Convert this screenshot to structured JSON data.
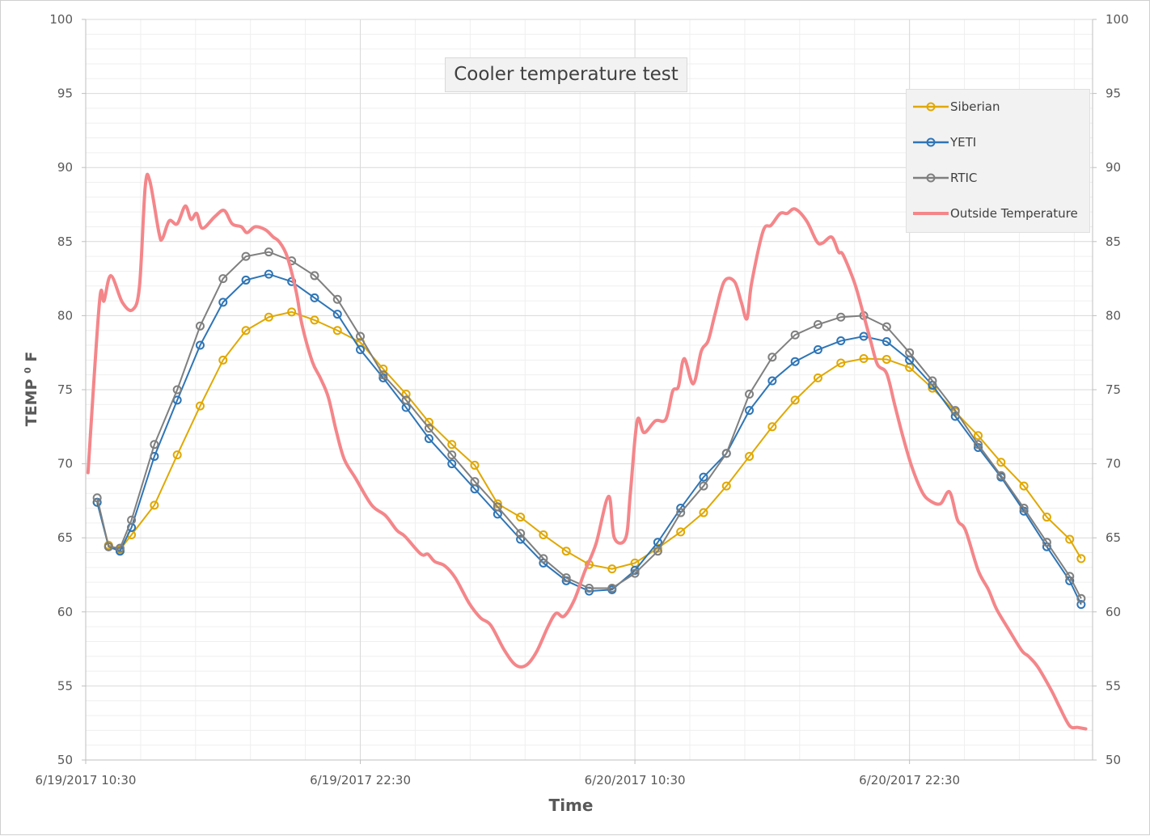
{
  "chart_data": {
    "type": "line",
    "title": "Cooler temperature test",
    "xlabel": "Time",
    "ylabel": {
      "text": "TEMP",
      "superscript": "0",
      "unit": "F"
    },
    "ylim": [
      50,
      100
    ],
    "y_major": 5,
    "y_minor": 1,
    "xlim": [
      "2017-06-19 10:30",
      "2017-06-21 06:30"
    ],
    "x_major_hours": 12,
    "x_minor_hours": 2.4,
    "x_tick_labels": [
      "6/19/2017 10:30",
      "6/19/2017 22:30",
      "6/20/2017 10:30",
      "6/20/2017 22:30"
    ],
    "y_tick_labels": [
      "50",
      "55",
      "60",
      "65",
      "70",
      "75",
      "80",
      "85",
      "90",
      "95",
      "100"
    ],
    "secondary_y_tick_labels": [
      "50",
      "55",
      "60",
      "65",
      "70",
      "75",
      "80",
      "85",
      "90",
      "95",
      "100"
    ],
    "grid": true,
    "legend_position": "top-right",
    "cooler_x": [
      "2017-06-19 11:00",
      "2017-06-19 11:30",
      "2017-06-19 12:00",
      "2017-06-19 12:30",
      "2017-06-19 13:30",
      "2017-06-19 14:30",
      "2017-06-19 15:30",
      "2017-06-19 16:30",
      "2017-06-19 17:30",
      "2017-06-19 18:30",
      "2017-06-19 19:30",
      "2017-06-19 20:30",
      "2017-06-19 21:30",
      "2017-06-19 22:30",
      "2017-06-19 23:30",
      "2017-06-20 00:30",
      "2017-06-20 01:30",
      "2017-06-20 02:30",
      "2017-06-20 03:30",
      "2017-06-20 04:30",
      "2017-06-20 05:30",
      "2017-06-20 06:30",
      "2017-06-20 07:30",
      "2017-06-20 08:30",
      "2017-06-20 09:30",
      "2017-06-20 10:30",
      "2017-06-20 11:30",
      "2017-06-20 12:30",
      "2017-06-20 13:30",
      "2017-06-20 14:30",
      "2017-06-20 15:30",
      "2017-06-20 16:30",
      "2017-06-20 17:30",
      "2017-06-20 18:30",
      "2017-06-20 19:30",
      "2017-06-20 20:30",
      "2017-06-20 21:30",
      "2017-06-20 22:30",
      "2017-06-20 23:30",
      "2017-06-21 00:30",
      "2017-06-21 01:30",
      "2017-06-21 02:30",
      "2017-06-21 03:30",
      "2017-06-21 04:30",
      "2017-06-21 05:30",
      "2017-06-21 06:00"
    ],
    "series": [
      {
        "name": "Siberian",
        "color": "#E0A800",
        "marker": "circle",
        "values": [
          67.4,
          64.5,
          64.2,
          65.2,
          67.2,
          70.6,
          73.9,
          77.0,
          79.0,
          79.9,
          80.25,
          79.7,
          79.0,
          78.2,
          76.4,
          74.7,
          72.8,
          71.3,
          69.9,
          67.3,
          66.4,
          65.2,
          64.1,
          63.2,
          62.9,
          63.3,
          64.3,
          65.4,
          66.7,
          68.5,
          70.5,
          72.5,
          74.3,
          75.8,
          76.8,
          77.1,
          77.05,
          76.5,
          75.1,
          73.5,
          71.9,
          70.1,
          68.5,
          66.4,
          64.9,
          63.6
        ]
      },
      {
        "name": "YETI",
        "color": "#2E75B6",
        "marker": "circle",
        "values": [
          67.4,
          64.4,
          64.1,
          65.7,
          70.5,
          74.3,
          78.0,
          80.9,
          82.4,
          82.8,
          82.3,
          81.2,
          80.1,
          77.7,
          75.8,
          73.8,
          71.7,
          70.0,
          68.3,
          66.6,
          64.9,
          63.3,
          62.1,
          61.4,
          61.5,
          62.8,
          64.7,
          67.0,
          69.1,
          70.7,
          73.6,
          75.6,
          76.9,
          77.7,
          78.3,
          78.6,
          78.25,
          77.0,
          75.3,
          73.2,
          71.1,
          69.1,
          66.8,
          64.4,
          62.1,
          60.5
        ]
      },
      {
        "name": "RTIC",
        "color": "#7F7F7F",
        "marker": "circle",
        "values": [
          67.7,
          64.4,
          64.3,
          66.2,
          71.3,
          75.0,
          79.3,
          82.5,
          84.0,
          84.3,
          83.7,
          82.7,
          81.1,
          78.6,
          76.0,
          74.3,
          72.4,
          70.6,
          68.8,
          67.1,
          65.3,
          63.6,
          62.3,
          61.6,
          61.6,
          62.6,
          64.1,
          66.7,
          68.5,
          70.7,
          74.7,
          77.2,
          78.7,
          79.4,
          79.9,
          80.0,
          79.25,
          77.5,
          75.6,
          73.6,
          71.3,
          69.2,
          67.0,
          64.7,
          62.4,
          60.9
        ]
      },
      {
        "name": "Outside Temperature",
        "color": "#F4868A",
        "marker": "none",
        "x": [
          "2017-06-19 10:36",
          "2017-06-19 11:06",
          "2017-06-19 11:18",
          "2017-06-19 11:36",
          "2017-06-19 12:06",
          "2017-06-19 12:33",
          "2017-06-19 12:51",
          "2017-06-19 13:06",
          "2017-06-19 13:18",
          "2017-06-19 13:42",
          "2017-06-19 13:51",
          "2017-06-19 14:09",
          "2017-06-19 14:30",
          "2017-06-19 14:51",
          "2017-06-19 15:06",
          "2017-06-19 15:21",
          "2017-06-19 15:36",
          "2017-06-19 16:09",
          "2017-06-19 16:33",
          "2017-06-19 16:54",
          "2017-06-19 17:18",
          "2017-06-19 17:33",
          "2017-06-19 17:54",
          "2017-06-19 18:21",
          "2017-06-19 18:42",
          "2017-06-19 18:57",
          "2017-06-19 19:18",
          "2017-06-19 19:42",
          "2017-06-19 19:57",
          "2017-06-19 20:24",
          "2017-06-19 20:45",
          "2017-06-19 21:06",
          "2017-06-19 21:27",
          "2017-06-19 21:48",
          "2017-06-19 22:18",
          "2017-06-19 23:00",
          "2017-06-19 23:36",
          "2017-06-20 00:06",
          "2017-06-20 00:27",
          "2017-06-20 01:09",
          "2017-06-20 01:27",
          "2017-06-20 01:45",
          "2017-06-20 02:12",
          "2017-06-20 02:39",
          "2017-06-20 03:15",
          "2017-06-20 03:45",
          "2017-06-20 04:12",
          "2017-06-20 04:48",
          "2017-06-20 05:18",
          "2017-06-20 05:45",
          "2017-06-20 06:12",
          "2017-06-20 06:42",
          "2017-06-20 07:03",
          "2017-06-20 07:24",
          "2017-06-20 07:51",
          "2017-06-20 08:18",
          "2017-06-20 08:48",
          "2017-06-20 09:21",
          "2017-06-20 09:36",
          "2017-06-20 10:06",
          "2017-06-20 10:18",
          "2017-06-20 10:36",
          "2017-06-20 10:54",
          "2017-06-20 11:24",
          "2017-06-20 11:51",
          "2017-06-20 12:09",
          "2017-06-20 12:24",
          "2017-06-20 12:39",
          "2017-06-20 13:03",
          "2017-06-20 13:24",
          "2017-06-20 13:42",
          "2017-06-20 14:00",
          "2017-06-20 14:24",
          "2017-06-20 14:51",
          "2017-06-20 15:09",
          "2017-06-20 15:24",
          "2017-06-20 15:36",
          "2017-06-20 16:06",
          "2017-06-20 16:27",
          "2017-06-20 16:51",
          "2017-06-20 17:09",
          "2017-06-20 17:30",
          "2017-06-20 18:00",
          "2017-06-20 18:27",
          "2017-06-20 18:42",
          "2017-06-20 19:06",
          "2017-06-20 19:24",
          "2017-06-20 19:36",
          "2017-06-20 20:06",
          "2017-06-20 20:27",
          "2017-06-20 20:48",
          "2017-06-20 21:06",
          "2017-06-20 21:30",
          "2017-06-20 21:51",
          "2017-06-20 22:12",
          "2017-06-20 22:36",
          "2017-06-20 23:03",
          "2017-06-20 23:24",
          "2017-06-20 23:51",
          "2017-06-21 00:15",
          "2017-06-21 00:36",
          "2017-06-21 00:57",
          "2017-06-21 01:30",
          "2017-06-21 01:57",
          "2017-06-21 02:18",
          "2017-06-21 02:48",
          "2017-06-21 03:24",
          "2017-06-21 03:42",
          "2017-06-21 04:06",
          "2017-06-21 04:42",
          "2017-06-21 05:03",
          "2017-06-21 05:30",
          "2017-06-21 05:51",
          "2017-06-21 06:12"
        ],
        "values": [
          69.4,
          80.9,
          81.0,
          82.7,
          80.9,
          80.4,
          82.0,
          88.7,
          89.1,
          85.6,
          85.2,
          86.4,
          86.2,
          87.4,
          86.5,
          86.9,
          85.9,
          86.7,
          87.1,
          86.2,
          86.0,
          85.6,
          86.0,
          85.8,
          85.3,
          85.0,
          84.0,
          81.6,
          79.4,
          76.9,
          75.8,
          74.5,
          72.2,
          70.3,
          69.0,
          67.2,
          66.5,
          65.5,
          65.1,
          63.9,
          63.9,
          63.4,
          63.1,
          62.3,
          60.6,
          59.6,
          59.1,
          57.4,
          56.4,
          56.4,
          57.3,
          59.0,
          59.9,
          59.7,
          60.8,
          62.7,
          64.6,
          67.8,
          65.0,
          65.0,
          68.0,
          72.9,
          72.1,
          72.9,
          73.0,
          74.9,
          75.2,
          77.1,
          75.4,
          77.6,
          78.3,
          80.1,
          82.3,
          82.3,
          80.9,
          79.8,
          82.2,
          85.7,
          86.1,
          86.9,
          86.9,
          87.2,
          86.4,
          85.0,
          84.9,
          85.3,
          84.3,
          84.1,
          82.2,
          80.3,
          78.3,
          76.7,
          76.1,
          74.0,
          71.9,
          69.8,
          68.1,
          67.5,
          67.3,
          68.1,
          66.2,
          65.5,
          62.8,
          61.5,
          60.2,
          58.9,
          57.4,
          57.0,
          56.3,
          54.7,
          53.6,
          52.3,
          52.2,
          52.1
        ]
      }
    ]
  }
}
